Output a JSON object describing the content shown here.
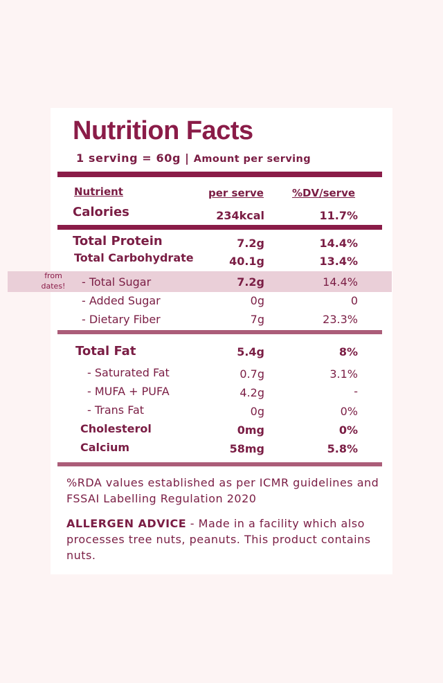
{
  "title": "Nutrition Facts",
  "serving": {
    "size": "1 serving = 60g | ",
    "amount_label": "Amount per serving"
  },
  "columns": {
    "nutrient": "Nutrient",
    "per_serve": "per serve",
    "dv": "%DV/serve"
  },
  "rows": {
    "calories": {
      "name": "Calories",
      "serve": "234kcal",
      "dv": "11.7%"
    },
    "protein": {
      "name": "Total Protein",
      "serve": "7.2g",
      "dv": "14.4%"
    },
    "carbs": {
      "name": "Total Carbohydrate",
      "serve": "40.1g",
      "dv": "13.4%"
    },
    "sugar": {
      "name": "- Total Sugar",
      "serve": "7.2g",
      "dv": "14.4%"
    },
    "added_sugar": {
      "name": "- Added Sugar",
      "serve": "0g",
      "dv": "0"
    },
    "fiber": {
      "name": "- Dietary Fiber",
      "serve": "7g",
      "dv": "23.3%"
    },
    "fat": {
      "name": "Total Fat",
      "serve": "5.4g",
      "dv": "8%"
    },
    "sat_fat": {
      "name": "- Saturated Fat",
      "serve": "0.7g",
      "dv": "3.1%"
    },
    "mufa_pufa": {
      "name": "- MUFA + PUFA",
      "serve": "4.2g",
      "dv": "-"
    },
    "trans_fat": {
      "name": "- Trans Fat",
      "serve": "0g",
      "dv": "0%"
    },
    "cholesterol": {
      "name": "Cholesterol",
      "serve": "0mg",
      "dv": "0%"
    },
    "calcium": {
      "name": "Calcium",
      "serve": "58mg",
      "dv": "5.8%"
    }
  },
  "sugar_note": "from dates!",
  "footer": {
    "rda": "%RDA values established as per ICMR guidelines and FSSAI Labelling Regulation 2020",
    "allergen_label": "ALLERGEN ADVICE",
    "allergen_text": " - Made in a facility which also processes tree nuts, peanuts. This product contains nuts."
  },
  "colors": {
    "background": "#fdf4f4",
    "card": "#ffffff",
    "text": "#7a1d44",
    "rule_dark": "#8a1c48",
    "rule_mid": "#ab5d79",
    "highlight": "#eacfd8"
  }
}
